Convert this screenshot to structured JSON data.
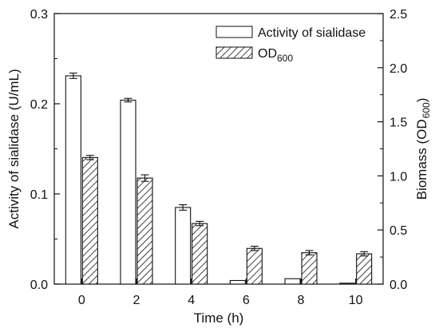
{
  "chart_data": {
    "type": "bar",
    "x_tick_labels": [
      "0",
      "2",
      "4",
      "6",
      "8",
      "10"
    ],
    "xlabel": "Time (h)",
    "ylabel_left": "Activity of sialidase (U/mL)",
    "ylabel_right": {
      "base": "Biomass (OD",
      "sub": "600",
      "tail": ")"
    },
    "ylim_left": [
      0.0,
      0.3
    ],
    "ylim_right": [
      0.0,
      2.5
    ],
    "y_ticks_left": [
      "0.0",
      "0.1",
      "0.2",
      "0.3"
    ],
    "y_ticks_right": [
      "0.0",
      "0.5",
      "1.0",
      "1.5",
      "2.0",
      "2.5"
    ],
    "grid": false,
    "legend_position": "top-right",
    "series": [
      {
        "name": "Activity of sialidase",
        "axis": "left",
        "fill": "open",
        "x": [
          0,
          2,
          4,
          6,
          8,
          10
        ],
        "values": [
          0.231,
          0.204,
          0.085,
          0.004,
          0.006,
          0.001
        ],
        "errors": [
          0.003,
          0.002,
          0.003,
          0.0,
          0.0,
          0.0
        ]
      },
      {
        "name": "OD",
        "name_sub": "600",
        "axis": "right",
        "fill": "hatched",
        "x": [
          0,
          2,
          4,
          6,
          8,
          10
        ],
        "values": [
          1.17,
          0.98,
          0.56,
          0.33,
          0.29,
          0.28
        ],
        "errors": [
          0.02,
          0.03,
          0.02,
          0.02,
          0.02,
          0.02
        ]
      }
    ]
  }
}
